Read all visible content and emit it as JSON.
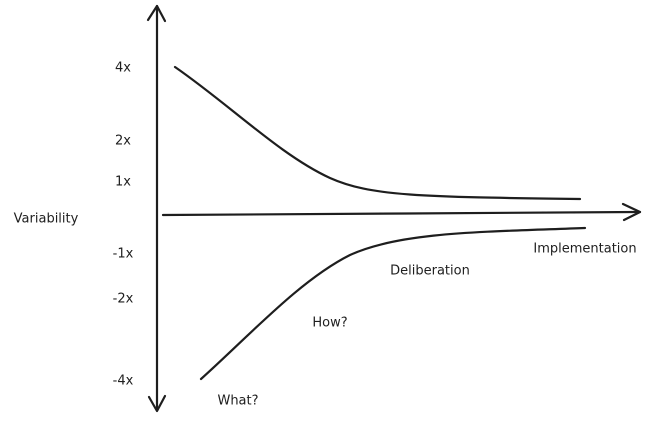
{
  "y_axis": {
    "label": "Variability",
    "ticks": [
      "4x",
      "2x",
      "1x",
      "-1x",
      "-2x",
      "-4x"
    ]
  },
  "phases": [
    "Implementation",
    "Deliberation",
    "How?",
    "What?"
  ]
}
